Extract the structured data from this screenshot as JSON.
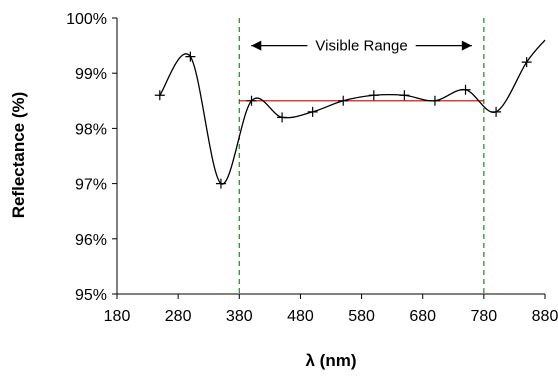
{
  "chart_data": {
    "type": "scatter",
    "title": "",
    "xlabel": "λ (nm)",
    "ylabel": "Reflectance (%)",
    "xlim": [
      180,
      880
    ],
    "ylim": [
      95,
      100
    ],
    "x_ticks": [
      180,
      280,
      380,
      480,
      580,
      680,
      780,
      880
    ],
    "x_tick_labels": [
      "180",
      "280",
      "380",
      "480",
      "580",
      "680",
      "780",
      "880"
    ],
    "y_ticks": [
      95,
      96,
      97,
      98,
      99,
      100
    ],
    "y_tick_labels": [
      "95%",
      "96%",
      "97%",
      "98%",
      "99%",
      "100%"
    ],
    "grid": false,
    "series": [
      {
        "marker": "plus",
        "line": "smooth",
        "color": "#000000",
        "x": [
          250,
          300,
          350,
          400,
          450,
          500,
          550,
          600,
          650,
          700,
          750,
          800,
          850
        ],
        "y": [
          98.6,
          99.3,
          97.0,
          98.5,
          98.2,
          98.3,
          98.5,
          98.6,
          98.6,
          98.5,
          98.7,
          98.3,
          99.2
        ]
      }
    ],
    "curve_extension": {
      "x": 880,
      "y": 99.6
    },
    "reference_line": {
      "y": 98.5,
      "x_from": 380,
      "x_to": 780,
      "color": "#cc0000"
    },
    "vertical_markers": [
      {
        "x": 380,
        "color": "#1a8a1a",
        "style": "dashed"
      },
      {
        "x": 780,
        "color": "#1a8a1a",
        "style": "dashed"
      }
    ],
    "annotation": {
      "text": "Visible Range",
      "x_from": 380,
      "x_to": 780,
      "y": 99.5
    }
  }
}
